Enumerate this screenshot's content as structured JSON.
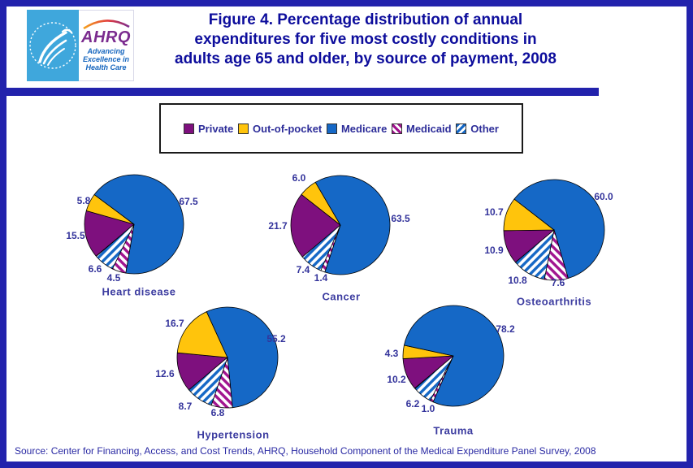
{
  "header": {
    "logo": {
      "acronym": "AHRQ",
      "tagline_lines": [
        "Advancing",
        "Excellence in",
        "Health Care"
      ]
    },
    "title_lines": [
      "Figure 4. Percentage distribution of annual",
      "expenditures for five most costly conditions in",
      "adults age 65 and older, by source of payment, 2008"
    ]
  },
  "legend": {
    "items": [
      {
        "key": "private",
        "label": "Private"
      },
      {
        "key": "oop",
        "label": "Out-of-pocket"
      },
      {
        "key": "medicare",
        "label": "Medicare"
      },
      {
        "key": "medicaid",
        "label": "Medicaid"
      },
      {
        "key": "other",
        "label": "Other"
      }
    ]
  },
  "colors": {
    "frame": "#2222AC",
    "title_text": "#0D0D9C",
    "label_text": "#33339B",
    "private": "#7E107E",
    "oop": "#FFC40C",
    "medicare": "#1568C6",
    "medicaid_stripe": "#A1148F",
    "other_stripe": "#1568C6",
    "hatch_background": "#FFFFFF",
    "slice_outline": "#000000",
    "logo_blue_panel": "#3FA7DC",
    "logo_purple": "#7B2C8F",
    "logo_tagline_blue": "#1565BE"
  },
  "chart_data": [
    {
      "type": "pie",
      "title": "Heart disease",
      "labels": [
        "Private",
        "Out-of-pocket",
        "Medicare",
        "Medicaid",
        "Other"
      ],
      "values": [
        15.5,
        5.8,
        67.5,
        4.5,
        6.6
      ],
      "start_angle_deg": 230,
      "direction": "clockwise"
    },
    {
      "type": "pie",
      "title": "Cancer",
      "labels": [
        "Private",
        "Out-of-pocket",
        "Medicare",
        "Medicaid",
        "Other"
      ],
      "values": [
        21.7,
        6.0,
        63.5,
        1.4,
        7.4
      ],
      "start_angle_deg": 230,
      "direction": "clockwise"
    },
    {
      "type": "pie",
      "title": "Osteoarthritis",
      "labels": [
        "Private",
        "Out-of-pocket",
        "Medicare",
        "Medicaid",
        "Other"
      ],
      "values": [
        10.9,
        10.7,
        60.0,
        7.6,
        10.8
      ],
      "start_angle_deg": 230,
      "direction": "clockwise"
    },
    {
      "type": "pie",
      "title": "Hypertension",
      "labels": [
        "Private",
        "Out-of-pocket",
        "Medicare",
        "Medicaid",
        "Other"
      ],
      "values": [
        12.6,
        16.7,
        55.2,
        6.8,
        8.7
      ],
      "start_angle_deg": 230,
      "direction": "clockwise"
    },
    {
      "type": "pie",
      "title": "Trauma",
      "labels": [
        "Private",
        "Out-of-pocket",
        "Medicare",
        "Medicaid",
        "Other"
      ],
      "values": [
        10.2,
        4.3,
        78.2,
        1.0,
        6.2
      ],
      "start_angle_deg": 230,
      "direction": "clockwise"
    }
  ],
  "footer": {
    "source": "Source: Center for Financing, Access, and Cost Trends, AHRQ, Household Component of the Medical Expenditure Panel Survey, 2008"
  }
}
